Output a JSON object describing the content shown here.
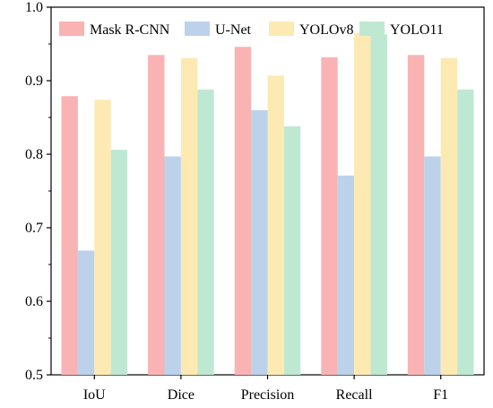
{
  "chart_data": {
    "type": "bar",
    "title": "",
    "xlabel": "",
    "ylabel": "",
    "categories": [
      "IoU",
      "Dice",
      "Precision",
      "Recall",
      "F1"
    ],
    "series": [
      {
        "name": "Mask R-CNN",
        "color": "#f9b3b3",
        "values": [
          0.879,
          0.935,
          0.946,
          0.932,
          0.935
        ]
      },
      {
        "name": "U-Net",
        "color": "#bcd2ea",
        "values": [
          0.669,
          0.797,
          0.86,
          0.771,
          0.797
        ]
      },
      {
        "name": "YOLOv8",
        "color": "#fdeab2",
        "values": [
          0.874,
          0.931,
          0.907,
          0.965,
          0.931
        ]
      },
      {
        "name": "YOLO11",
        "color": "#bfe8d2",
        "values": [
          0.806,
          0.888,
          0.838,
          0.963,
          0.888
        ]
      }
    ],
    "ylim": [
      0.5,
      1.0
    ],
    "yticks": [
      0.5,
      0.6,
      0.7,
      0.8,
      0.9,
      1.0
    ],
    "ytick_labels": [
      "0.5",
      "0.6",
      "0.7",
      "0.8",
      "0.9",
      "1.0"
    ],
    "grid": false,
    "legend_position": "top"
  }
}
